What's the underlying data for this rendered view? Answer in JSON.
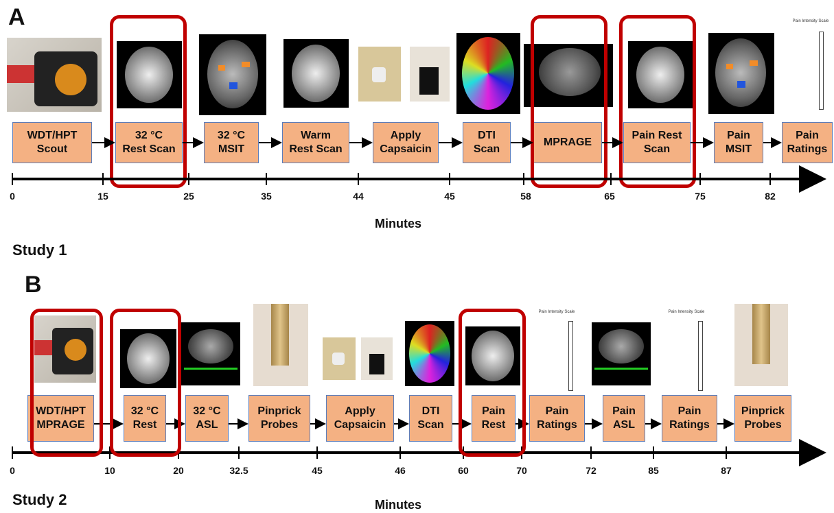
{
  "panel_a": {
    "letter": "A",
    "study_label": "Study 1",
    "axis_title": "Minutes",
    "steps": [
      "WDT/HPT\nScout",
      "32 °C\nRest Scan",
      "32 °C\nMSIT",
      "Warm\nRest Scan",
      "Apply\nCapsaicin",
      "DTI\nScan",
      "MPRAGE",
      "Pain Rest\nScan",
      "Pain\nMSIT",
      "Pain\nRatings"
    ],
    "ticks": [
      "0",
      "15",
      "25",
      "35",
      "44",
      "45",
      "58",
      "65",
      "75",
      "82"
    ],
    "scale_title": "Pain Intensity Scale"
  },
  "panel_b": {
    "letter": "B",
    "study_label": "Study 2",
    "axis_title": "Minutes",
    "steps": [
      "WDT/HPT\nMPRAGE",
      "32 °C\nRest",
      "32 °C\nASL",
      "Pinprick\nProbes",
      "Apply\nCapsaicin",
      "DTI\nScan",
      "Pain\nRest",
      "Pain\nRatings",
      "Pain\nASL",
      "Pain\nRatings",
      "Pinprick\nProbes"
    ],
    "ticks": [
      "0",
      "10",
      "20",
      "32.5",
      "45",
      "46",
      "60",
      "70",
      "72",
      "85",
      "87"
    ],
    "scale_title": "Pain Intensity Scale"
  },
  "colors": {
    "box_fill": "#f4b183",
    "box_border": "#5b7dbb",
    "highlight": "#c00000",
    "axis": "#000000"
  }
}
